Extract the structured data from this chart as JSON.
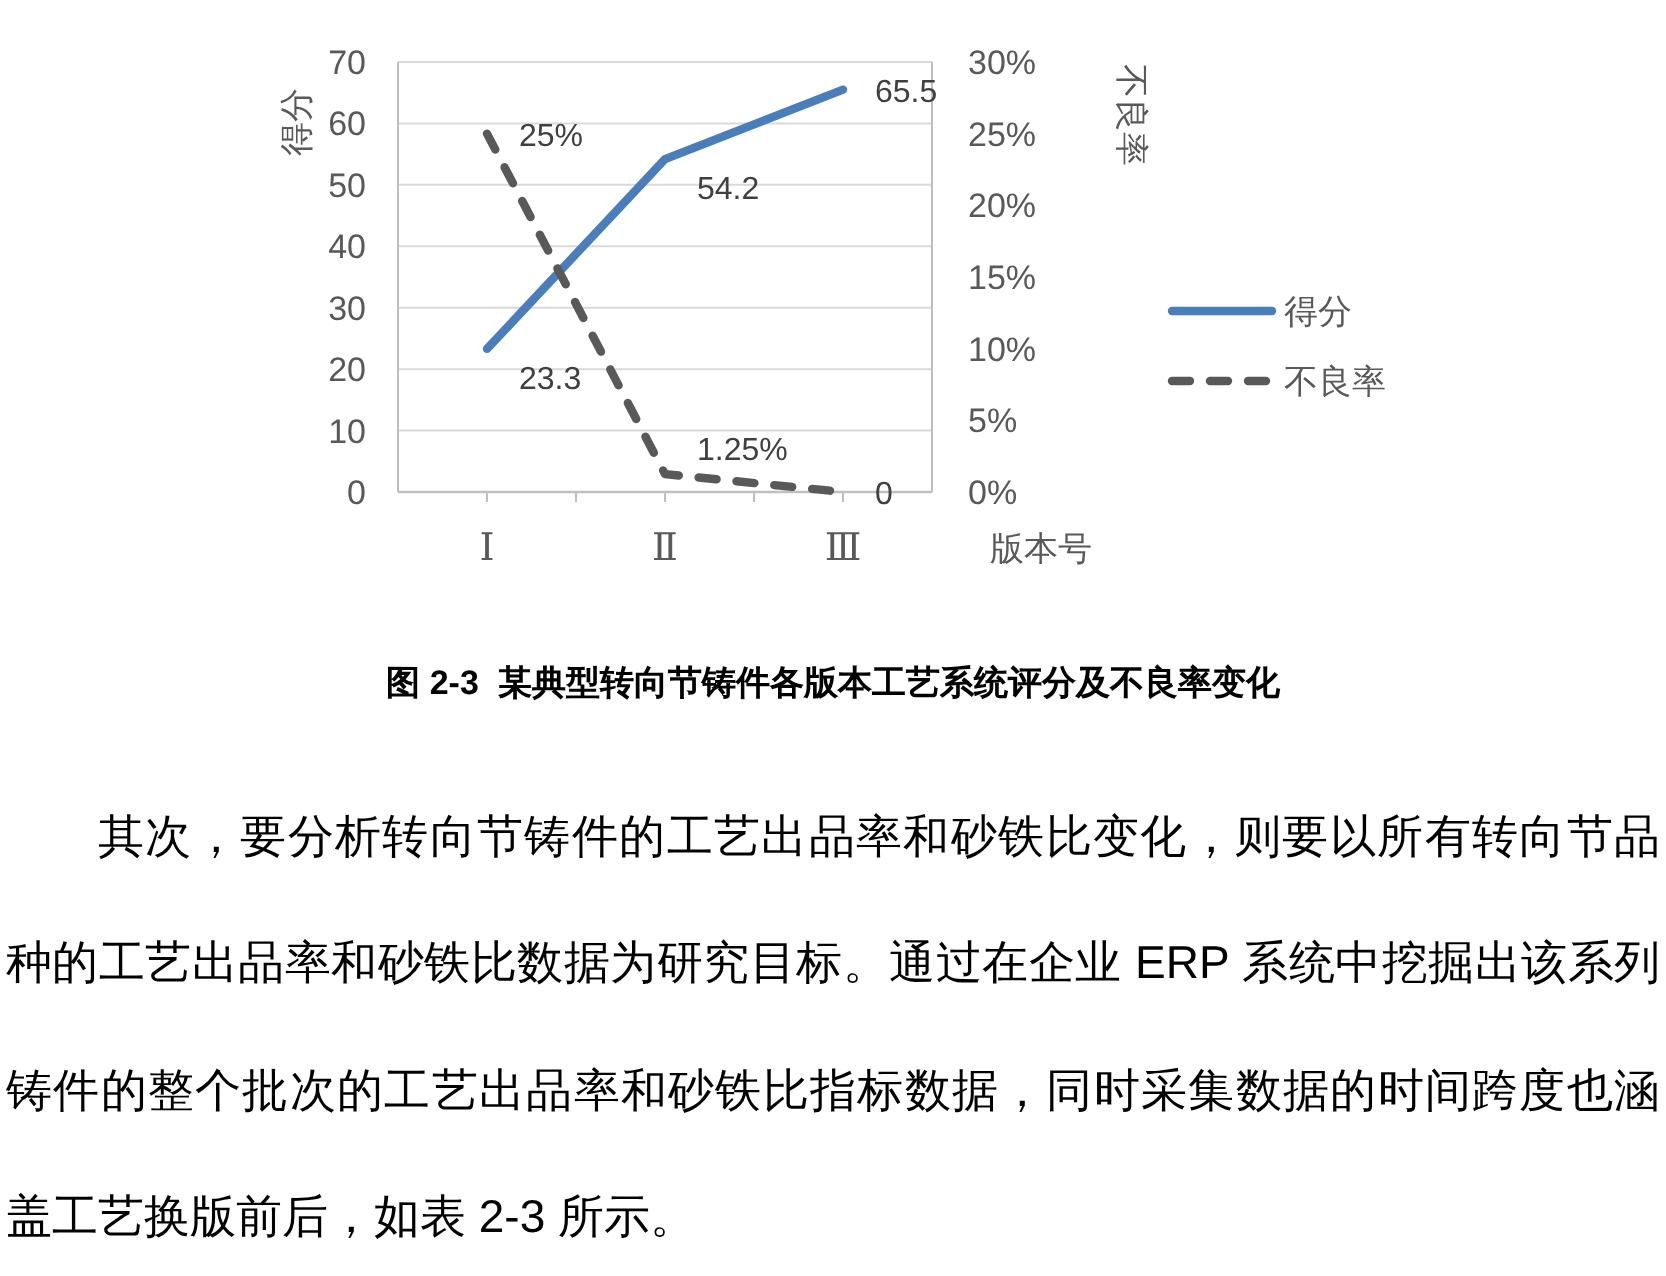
{
  "chart_data": {
    "type": "line",
    "title": "图 2-3  某典型转向节铸件各版本工艺系统评分及不良率变化",
    "xlabel": "版本号",
    "ylabel": "得分",
    "y2label": "不良率",
    "categories": [
      "Ⅰ",
      "Ⅱ",
      "Ⅲ"
    ],
    "series": [
      {
        "name": "得分",
        "color": "#4a7ebb",
        "values": [
          23.3,
          54.2,
          65.5
        ],
        "value_labels": [
          "23.3",
          "54.2",
          "65.5"
        ],
        "line_style": "solid"
      },
      {
        "name": "不良率",
        "color": "#595959",
        "values": [
          25,
          1.25,
          0
        ],
        "value_labels": [
          "25%",
          "1.25%",
          "0"
        ],
        "axis": "y2",
        "line_style": "dashed"
      }
    ],
    "ylim": [
      0,
      70
    ],
    "yticks": [
      0,
      10,
      20,
      30,
      40,
      50,
      60,
      70
    ],
    "y2lim": [
      0,
      30
    ],
    "y2ticks": [
      {
        "value": 0,
        "label": "0%"
      },
      {
        "value": 5,
        "label": "5%"
      },
      {
        "value": 10,
        "label": "10%"
      },
      {
        "value": 15,
        "label": "15%"
      },
      {
        "value": 20,
        "label": "20%"
      },
      {
        "value": 25,
        "label": "25%"
      },
      {
        "value": 30,
        "label": "30%"
      }
    ],
    "grid": "y",
    "legend": "right",
    "annotations": [
      "其次，要分析转向节铸件的工艺出品率和砂铁比变化，则要以所有转向节品种的工艺出品率和砂铁比数据为研究目标。通过在企业 ERP 系统中挖掘出该系列铸件的整个批次的工艺出品率和砂铁比指标数据，同时采集数据的时间跨度也涵盖工艺换版前后，如表 2-3 所示。"
    ]
  }
}
